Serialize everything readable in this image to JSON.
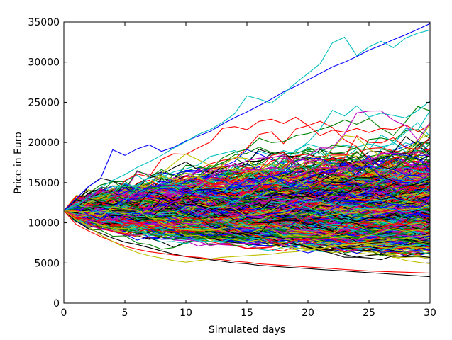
{
  "chart_data": {
    "type": "line",
    "title": "",
    "xlabel": "Simulated days",
    "ylabel": "Price in Euro",
    "xlim": [
      0,
      30
    ],
    "ylim": [
      0,
      35000
    ],
    "x_ticks": [
      0,
      5,
      10,
      15,
      20,
      25,
      30
    ],
    "y_ticks": [
      0,
      5000,
      10000,
      15000,
      20000,
      25000,
      30000,
      35000
    ],
    "x_tick_labels": [
      "0",
      "5",
      "10",
      "15",
      "20",
      "25",
      "30"
    ],
    "y_tick_labels": [
      "0",
      "5000",
      "10000",
      "15000",
      "20000",
      "25000",
      "30000",
      "35000"
    ],
    "grid": false,
    "legend": "none",
    "start_price": 11500,
    "num_days": 30,
    "num_series": 1000,
    "series_colors": [
      "#0000ff",
      "#008000",
      "#ff0000",
      "#00bfbf",
      "#bf00bf",
      "#bfbf00",
      "#000000"
    ],
    "highlighted_series": [
      {
        "values": [
          11500,
          13000,
          14500,
          15500,
          19100,
          18400,
          19200,
          19700,
          18900,
          19400,
          20200,
          20800,
          21400,
          22300,
          23100,
          23800,
          24600,
          25400,
          26300,
          27000,
          27800,
          28600,
          29400,
          30000,
          30700,
          31500,
          32100,
          32800,
          33400,
          34100,
          34800
        ]
      },
      {
        "values": [
          11500,
          12200,
          13100,
          14400,
          15300,
          16000,
          16900,
          17600,
          18400,
          19300,
          20100,
          21000,
          21600,
          22500,
          23600,
          25800,
          25400,
          24900,
          26100,
          27400,
          28600,
          29800,
          32400,
          33100,
          30800,
          31900,
          32600,
          31800,
          33000,
          33600,
          34000
        ]
      },
      {
        "values": [
          11500,
          10200,
          9300,
          8700,
          8100,
          7600,
          7300,
          6900,
          6500,
          6100,
          5800,
          5600,
          5400,
          5200,
          5000,
          4900,
          4700,
          4600,
          4500,
          4400,
          4300,
          4200,
          4100,
          4000,
          3900,
          3800,
          3700,
          3600,
          3500,
          3400,
          3300
        ]
      },
      {
        "values": [
          11500,
          9800,
          9000,
          8300,
          7700,
          7100,
          6700,
          6400,
          6200,
          6000,
          5800,
          5700,
          5500,
          5400,
          5200,
          5100,
          4900,
          4800,
          4700,
          4600,
          4500,
          4400,
          4300,
          4200,
          4100,
          4000,
          3950,
          3900,
          3850,
          3800,
          3750
        ]
      },
      {
        "values": [
          11500,
          10400,
          9500,
          8500,
          7700,
          6900,
          6300,
          5900,
          5600,
          5300,
          5100,
          5300,
          5500,
          5700,
          5800,
          5900,
          6000,
          6100,
          6300,
          6400,
          6600,
          6800,
          7000,
          7200,
          7400,
          7500,
          7700,
          7900,
          8100,
          8300,
          8500
        ]
      }
    ]
  }
}
